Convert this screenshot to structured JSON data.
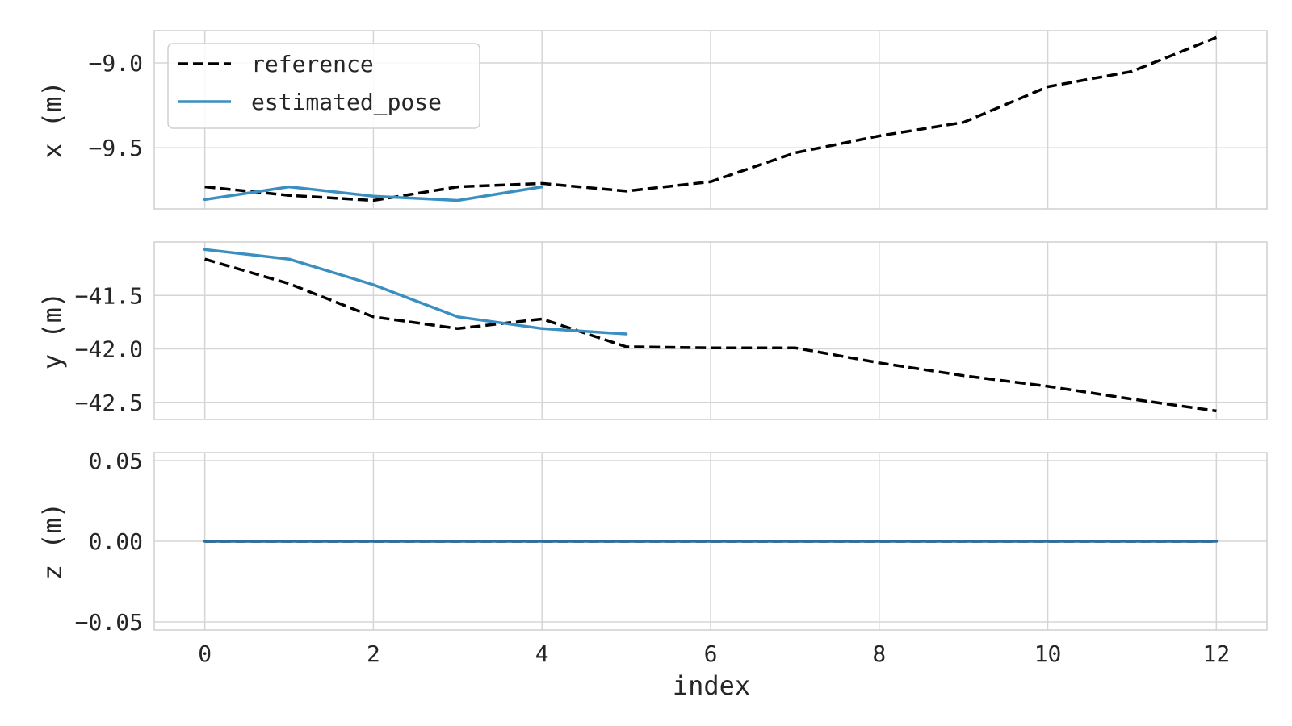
{
  "chart_data": {
    "type": "line",
    "xlabel": "index",
    "legend": {
      "placement": "top-left",
      "entries": [
        "reference",
        "estimated_pose"
      ]
    },
    "grid": true,
    "xlim": [
      -0.6,
      12.6
    ],
    "x_ticks": [
      "0",
      "2",
      "4",
      "6",
      "8",
      "10",
      "12"
    ],
    "subplots": [
      {
        "ylabel": "x (m)",
        "ylim": [
          -9.86,
          -8.81
        ],
        "y_ticks": [
          {
            "value": -9.0,
            "label": "−9.0"
          },
          {
            "value": -9.5,
            "label": "−9.5"
          }
        ],
        "series": [
          {
            "name": "reference",
            "style": "dashed",
            "color": "#000000",
            "x": [
              0,
              1,
              2,
              3,
              4,
              5,
              6,
              7,
              8,
              9,
              10,
              11,
              12
            ],
            "y": [
              -9.73,
              -9.78,
              -9.81,
              -9.73,
              -9.71,
              -9.755,
              -9.7,
              -9.53,
              -9.43,
              -9.35,
              -9.14,
              -9.05,
              -8.85
            ]
          },
          {
            "name": "estimated_pose",
            "style": "solid",
            "color": "#3a8fc0",
            "x": [
              0,
              1,
              2,
              3,
              4
            ],
            "y": [
              -9.805,
              -9.73,
              -9.785,
              -9.81,
              -9.73
            ]
          }
        ]
      },
      {
        "ylabel": "y (m)",
        "ylim": [
          -42.66,
          -41.0
        ],
        "y_ticks": [
          {
            "value": -41.5,
            "label": "−41.5"
          },
          {
            "value": -42.0,
            "label": "−42.0"
          },
          {
            "value": -42.5,
            "label": "−42.5"
          }
        ],
        "series": [
          {
            "name": "reference",
            "style": "dashed",
            "color": "#000000",
            "x": [
              0,
              1,
              2,
              3,
              4,
              5,
              6,
              7,
              8,
              9,
              10,
              11,
              12
            ],
            "y": [
              -41.16,
              -41.39,
              -41.7,
              -41.81,
              -41.72,
              -41.98,
              -41.99,
              -41.99,
              -42.13,
              -42.25,
              -42.35,
              -42.47,
              -42.58
            ]
          },
          {
            "name": "estimated_pose",
            "style": "solid",
            "color": "#3a8fc0",
            "x": [
              0,
              1,
              2,
              3,
              4,
              5
            ],
            "y": [
              -41.07,
              -41.16,
              -41.4,
              -41.7,
              -41.81,
              -41.86
            ]
          }
        ]
      },
      {
        "ylabel": "z (m)",
        "ylim": [
          -0.055,
          0.055
        ],
        "y_ticks": [
          {
            "value": 0.05,
            "label": "0.05"
          },
          {
            "value": 0.0,
            "label": "0.00"
          },
          {
            "value": -0.05,
            "label": "−0.05"
          }
        ],
        "series": [
          {
            "name": "reference",
            "style": "dashed",
            "color": "#000000",
            "x": [
              0,
              1,
              2,
              3,
              4,
              5,
              6,
              7,
              8,
              9,
              10,
              11,
              12
            ],
            "y": [
              0,
              0,
              0,
              0,
              0,
              0,
              0,
              0,
              0,
              0,
              0,
              0,
              0
            ]
          },
          {
            "name": "estimated_pose",
            "style": "solid",
            "color": "#2b6f9e",
            "x": [
              0,
              1,
              2,
              3,
              4,
              5,
              6,
              7,
              8,
              9,
              10,
              11,
              12
            ],
            "y": [
              0,
              0,
              0,
              0,
              0,
              0,
              0,
              0,
              0,
              0,
              0,
              0,
              0
            ]
          }
        ]
      }
    ]
  }
}
